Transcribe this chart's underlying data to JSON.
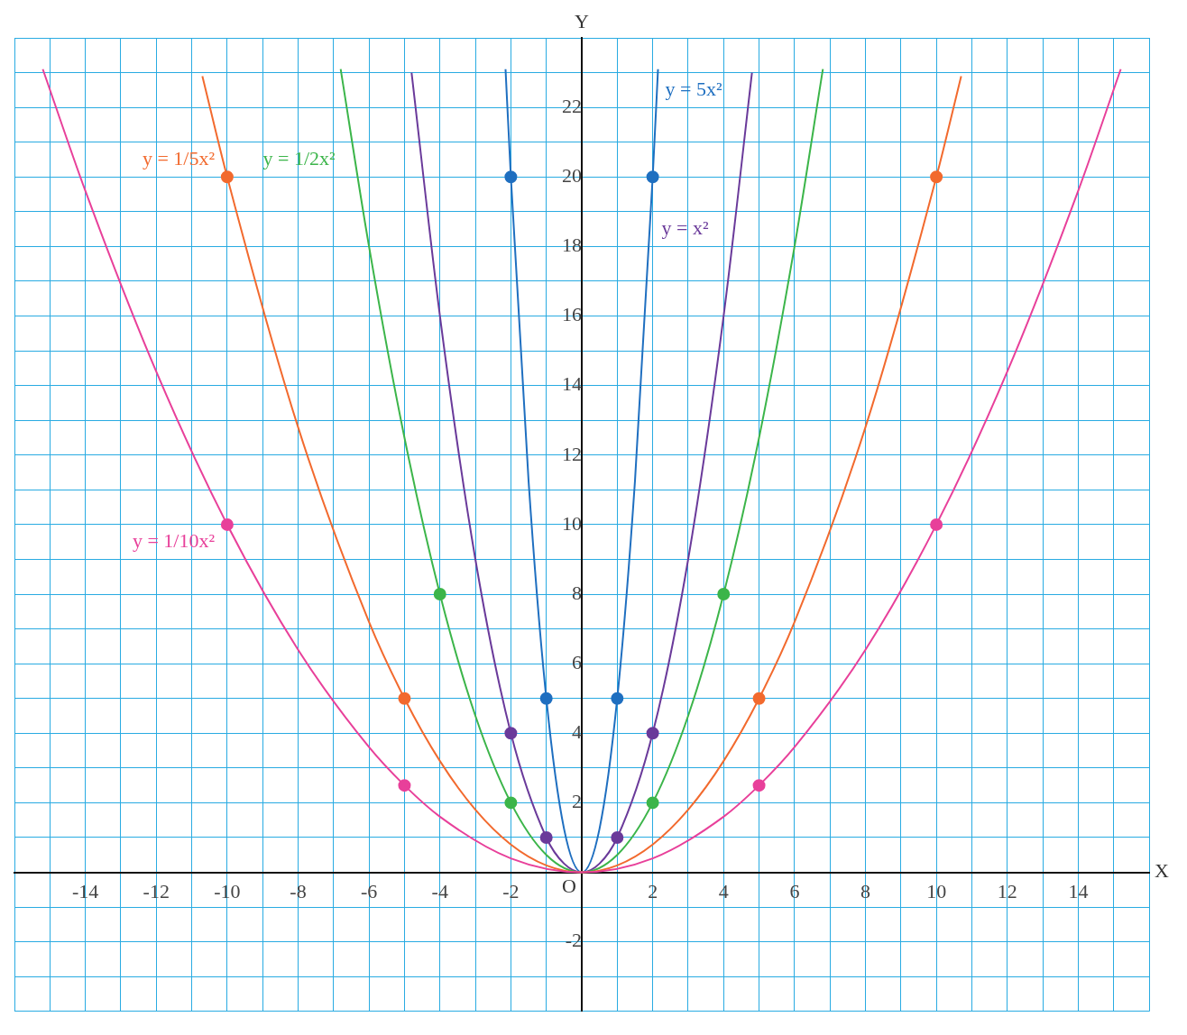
{
  "chart_data": {
    "type": "line",
    "xlabel": "X",
    "ylabel": "Y",
    "xlim": [
      -16,
      16
    ],
    "ylim": [
      -4,
      24
    ],
    "xticks": [
      {
        "value": -16,
        "label": null
      },
      {
        "value": -15,
        "label": null
      },
      -14,
      {
        "value": -13,
        "label": null
      },
      -12,
      {
        "value": -11,
        "label": null
      },
      -10,
      {
        "value": -9,
        "label": null
      },
      -8,
      {
        "value": -7,
        "label": null
      },
      -6,
      {
        "value": -5,
        "label": null
      },
      -4,
      {
        "value": -3,
        "label": null
      },
      -2,
      {
        "value": -1,
        "label": null
      },
      {
        "value": 0,
        "label": null
      },
      {
        "value": 1,
        "label": null
      },
      2,
      {
        "value": 3,
        "label": null
      },
      4,
      {
        "value": 5,
        "label": null
      },
      6,
      {
        "value": 7,
        "label": null
      },
      8,
      {
        "value": 9,
        "label": null
      },
      10,
      {
        "value": 11,
        "label": null
      },
      12,
      {
        "value": 13,
        "label": null
      },
      14,
      {
        "value": 15,
        "label": null
      },
      {
        "value": 16,
        "label": null
      }
    ],
    "yticks": [
      {
        "value": -4,
        "label": null
      },
      {
        "value": -3,
        "label": null
      },
      -2,
      {
        "value": -1,
        "label": null
      },
      {
        "value": 0,
        "label": null
      },
      {
        "value": 1,
        "label": null
      },
      2,
      {
        "value": 3,
        "label": null
      },
      4,
      {
        "value": 5,
        "label": null
      },
      6,
      {
        "value": 7,
        "label": null
      },
      8,
      {
        "value": 9,
        "label": null
      },
      10,
      {
        "value": 11,
        "label": null
      },
      12,
      {
        "value": 13,
        "label": null
      },
      14,
      {
        "value": 15,
        "label": null
      },
      16,
      {
        "value": 17,
        "label": null
      },
      18,
      {
        "value": 19,
        "label": null
      },
      20,
      {
        "value": 21,
        "label": null
      },
      22,
      {
        "value": 23,
        "label": null
      },
      {
        "value": 24,
        "label": null
      }
    ],
    "grid": true,
    "legend": false,
    "annotations": [
      {
        "text": "O",
        "x": 0,
        "y": 0
      }
    ],
    "series": [
      {
        "type": "line",
        "name": "y = 1/10x²",
        "color": "#e8409a",
        "marker": "none",
        "x": [
          -15.2,
          -14,
          -12,
          -10,
          -8,
          -6,
          -5,
          -4,
          -2,
          0,
          2,
          4,
          5,
          6,
          8,
          10,
          12,
          14,
          15.2
        ],
        "values": [
          23.1,
          19.6,
          14.4,
          10,
          6.4,
          3.6,
          2.5,
          1.6,
          0.4,
          0,
          0.4,
          1.6,
          2.5,
          3.6,
          6.4,
          10,
          14.4,
          19.6,
          23.1
        ]
      },
      {
        "type": "line",
        "name": "y = 1/5x²",
        "color": "#f26a2e",
        "marker": "none",
        "x": [
          -10.7,
          -10,
          -8,
          -6,
          -5,
          -4,
          -3,
          -2,
          -1,
          0,
          1,
          2,
          3,
          4,
          5,
          6,
          8,
          10,
          10.7
        ],
        "values": [
          22.9,
          20,
          12.8,
          7.2,
          5,
          3.2,
          1.8,
          0.8,
          0.2,
          0,
          0.2,
          0.8,
          1.8,
          3.2,
          5,
          7.2,
          12.8,
          20,
          22.9
        ]
      },
      {
        "type": "line",
        "name": "y = 1/2x²",
        "color": "#3cb54a",
        "marker": "none",
        "x": [
          -6.8,
          -6,
          -5,
          -4,
          -3,
          -2,
          -1,
          0,
          1,
          2,
          3,
          4,
          5,
          6,
          6.8
        ],
        "values": [
          23.1,
          18,
          12.5,
          8,
          4.5,
          2,
          0.5,
          0,
          0.5,
          2,
          4.5,
          8,
          12.5,
          18,
          23.1
        ]
      },
      {
        "type": "line",
        "name": "y = x²",
        "color": "#6a3a9a",
        "marker": "none",
        "x": [
          -4.8,
          -4,
          -3,
          -2,
          -1,
          -0.5,
          0,
          0.5,
          1,
          2,
          3,
          4,
          4.8
        ],
        "values": [
          23,
          16,
          9,
          4,
          1,
          0.25,
          0,
          0.25,
          1,
          4,
          9,
          16,
          23
        ]
      },
      {
        "type": "line",
        "name": "y = 5x²",
        "color": "#1f6fc0",
        "marker": "none",
        "x": [
          -2.15,
          -2,
          -1.5,
          -1,
          -0.5,
          0,
          0.5,
          1,
          1.5,
          2,
          2.15
        ],
        "values": [
          23.1,
          20,
          11.25,
          5,
          1.25,
          0,
          1.25,
          5,
          11.25,
          20,
          23.1
        ]
      },
      {
        "type": "scatter",
        "color": "#e8409a",
        "marker": "circle",
        "x": [
          -10,
          -5,
          5,
          10
        ],
        "values": [
          10,
          2.5,
          2.5,
          10
        ]
      },
      {
        "type": "scatter",
        "color": "#f26a2e",
        "marker": "circle",
        "x": [
          -10,
          -5,
          5,
          10
        ],
        "values": [
          20,
          5,
          5,
          20
        ]
      },
      {
        "type": "scatter",
        "color": "#3cb54a",
        "marker": "circle",
        "x": [
          -4,
          -2,
          2,
          4
        ],
        "values": [
          8,
          2,
          2,
          8
        ]
      },
      {
        "type": "scatter",
        "color": "#6a3a9a",
        "marker": "circle",
        "x": [
          -2,
          -1,
          1,
          2
        ],
        "values": [
          4,
          1,
          1,
          4
        ]
      },
      {
        "type": "scatter",
        "color": "#1f6fc0",
        "marker": "circle",
        "x": [
          -2,
          -1,
          1,
          2
        ],
        "values": [
          20,
          5,
          5,
          20
        ]
      }
    ]
  }
}
